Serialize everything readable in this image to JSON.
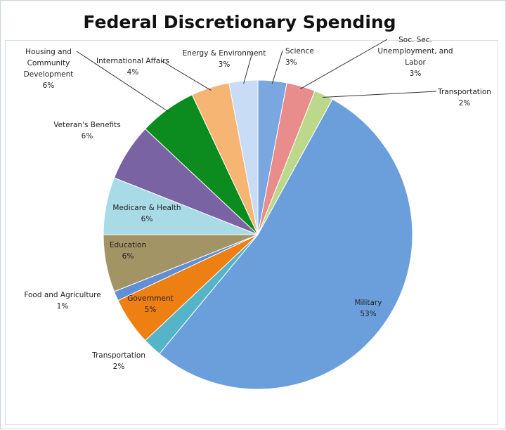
{
  "chart_data": {
    "type": "pie",
    "title": "Federal Discretionary Spending",
    "slices": [
      {
        "label": "Science",
        "value": 3,
        "color": "#7aa7e0"
      },
      {
        "label": "Soc. Sec. Unemployment, and Labor",
        "label_lines": [
          "Soc. Sec.",
          "Unemployment, and",
          "Labor"
        ],
        "value": 3,
        "color": "#e88d8b"
      },
      {
        "label": "Transportation",
        "value": 2,
        "color": "#bcd98b"
      },
      {
        "label": "Military",
        "value": 53,
        "color": "#6a9fdc"
      },
      {
        "label": "Transportation",
        "value": 2,
        "color": "#55b4c8"
      },
      {
        "label": "Government",
        "value": 5,
        "color": "#ee7f12"
      },
      {
        "label": "Food and Agriculture",
        "value": 1,
        "color": "#5f8fd6"
      },
      {
        "label": "Education",
        "value": 6,
        "color": "#a39466"
      },
      {
        "label": "Medicare & Health",
        "value": 6,
        "color": "#a9dbe6"
      },
      {
        "label": "Veteran's Benefits",
        "value": 6,
        "color": "#7a63a2"
      },
      {
        "label": "Housing and Community Development",
        "label_lines": [
          "Housing and",
          "Community",
          "Development"
        ],
        "value": 6,
        "color": "#0c8c1e"
      },
      {
        "label": "International Affairs",
        "value": 4,
        "color": "#f7b574"
      },
      {
        "label": "Energy & Environment",
        "value": 3,
        "color": "#c9dcf6"
      }
    ],
    "value_suffix": "%"
  }
}
